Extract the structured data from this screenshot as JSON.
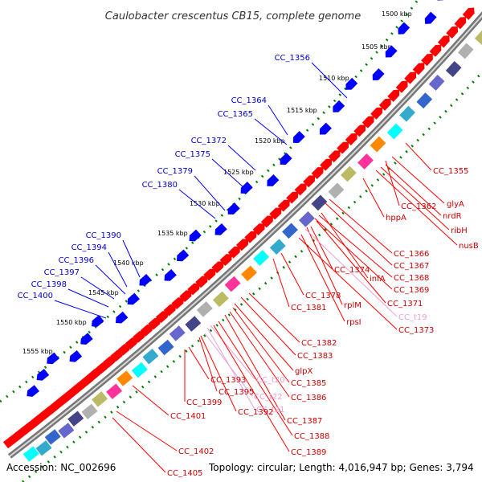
{
  "title": "Caulobacter crescentus CB15, complete genome",
  "footer": {
    "accession": "Accession: NC_002696",
    "summary": "Topology: circular; Length: 4,016,947 bp; Genes: 3,794"
  },
  "colors": {
    "gene_red": "#ff0000",
    "gene_blue": "#0000ff",
    "rna_pink": "#e8a0d8",
    "backbone": "#999999",
    "tick_green": "#008000"
  },
  "kbp_ticks": [
    "1500 kbp",
    "1505 kbp",
    "1510 kbp",
    "1515 kbp",
    "1520 kbp",
    "1525 kbp",
    "1530 kbp",
    "1535 kbp",
    "1540 kbp",
    "1545 kbp",
    "1550 kbp",
    "1555 kbp"
  ],
  "left_labels": [
    "CC_1356",
    "CC_1364",
    "CC_1365",
    "CC_1372",
    "CC_1375",
    "CC_1379",
    "CC_1380",
    "CC_1390",
    "CC_1394",
    "CC_1396",
    "CC_1397",
    "CC_1398",
    "CC_1400"
  ],
  "right_labels": [
    {
      "text": "CC_1355",
      "kind": "gene"
    },
    {
      "text": "glyA",
      "kind": "gene"
    },
    {
      "text": "CC_1362",
      "kind": "gene"
    },
    {
      "text": "nrdR",
      "kind": "gene"
    },
    {
      "text": "hppA",
      "kind": "gene"
    },
    {
      "text": "ribH",
      "kind": "gene"
    },
    {
      "text": "nusB",
      "kind": "gene"
    },
    {
      "text": "CC_1366",
      "kind": "gene"
    },
    {
      "text": "CC_1367",
      "kind": "gene"
    },
    {
      "text": "CC_1374",
      "kind": "gene"
    },
    {
      "text": "infA",
      "kind": "gene"
    },
    {
      "text": "CC_1368",
      "kind": "gene"
    },
    {
      "text": "CC_1369",
      "kind": "gene"
    },
    {
      "text": "CC_1378",
      "kind": "gene"
    },
    {
      "text": "CC_1381",
      "kind": "gene"
    },
    {
      "text": "rplM",
      "kind": "gene"
    },
    {
      "text": "CC_1371",
      "kind": "gene"
    },
    {
      "text": "CC_t19",
      "kind": "rna"
    },
    {
      "text": "rpsI",
      "kind": "gene"
    },
    {
      "text": "CC_1373",
      "kind": "gene"
    },
    {
      "text": "CC_1382",
      "kind": "gene"
    },
    {
      "text": "CC_1383",
      "kind": "gene"
    },
    {
      "text": "glpX",
      "kind": "gene"
    },
    {
      "text": "CC_1393",
      "kind": "gene"
    },
    {
      "text": "CC_t20",
      "kind": "rna"
    },
    {
      "text": "CC_1385",
      "kind": "gene"
    },
    {
      "text": "CC_1399",
      "kind": "gene"
    },
    {
      "text": "CC_1395",
      "kind": "gene"
    },
    {
      "text": "CC_t22",
      "kind": "rna"
    },
    {
      "text": "CC_1386",
      "kind": "gene"
    },
    {
      "text": "CC_t21",
      "kind": "rna"
    },
    {
      "text": "CC_1392",
      "kind": "gene"
    },
    {
      "text": "CC_1401",
      "kind": "gene"
    },
    {
      "text": "CC_1387",
      "kind": "gene"
    },
    {
      "text": "CC_1388",
      "kind": "gene"
    },
    {
      "text": "CC_1389",
      "kind": "gene"
    },
    {
      "text": "CC_1402",
      "kind": "gene"
    },
    {
      "text": "CC_1405",
      "kind": "gene"
    }
  ]
}
